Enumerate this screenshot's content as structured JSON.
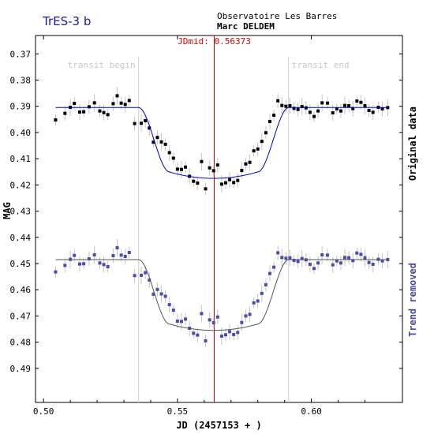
{
  "chart_data": {
    "type": "scatter",
    "title": "TrES-3 b",
    "observatory": "Observatoire Les Barres",
    "observer": "Marc DELDEM",
    "xlabel": "JD (2457153 + )",
    "ylabel": "MAG",
    "xlim": [
      0.497,
      0.634
    ],
    "ylim": [
      0.363,
      0.503
    ],
    "x_ticks": [
      "0.50",
      "0.55",
      "0.60"
    ],
    "y_ticks": [
      "0.37",
      "0.38",
      "0.39",
      "0.40",
      "0.41",
      "0.42",
      "0.43",
      "0.44",
      "0.45",
      "0.46",
      "0.47",
      "0.48",
      "0.49"
    ],
    "grid": false,
    "vertical_lines": [
      {
        "label": "transit begin",
        "x": 0.5355,
        "color": "#d0d0d0"
      },
      {
        "label": "transit end",
        "x": 0.5915,
        "color": "#d0d0d0"
      },
      {
        "label": "JDmid: 0.56373",
        "x": 0.56373,
        "color": "#dd0000"
      }
    ],
    "series": [
      {
        "name": "Original data",
        "color": "#000000",
        "model_color": "#0000cc",
        "baseline": 0.3905,
        "depth": 0.027,
        "x": [
          0.5045,
          0.508,
          0.51,
          0.5115,
          0.5135,
          0.515,
          0.517,
          0.519,
          0.521,
          0.5225,
          0.524,
          0.526,
          0.5275,
          0.529,
          0.5305,
          0.532,
          0.534,
          0.5365,
          0.538,
          0.5395,
          0.541,
          0.5425,
          0.544,
          0.5455,
          0.547,
          0.5485,
          0.55,
          0.5515,
          0.553,
          0.5545,
          0.556,
          0.5575,
          0.559,
          0.5605,
          0.562,
          0.5635,
          0.565,
          0.5665,
          0.568,
          0.5695,
          0.571,
          0.5725,
          0.574,
          0.5755,
          0.577,
          0.5785,
          0.58,
          0.5815,
          0.583,
          0.5845,
          0.586,
          0.5875,
          0.589,
          0.5905,
          0.592,
          0.5935,
          0.595,
          0.5965,
          0.598,
          0.5995,
          0.601,
          0.6025,
          0.604,
          0.606,
          0.608,
          0.6095,
          0.611,
          0.6125,
          0.614,
          0.6155,
          0.617,
          0.6185,
          0.62,
          0.6215,
          0.623,
          0.625,
          0.6265,
          0.6285
        ],
        "y": [
          0.3952,
          0.3927,
          0.3904,
          0.3889,
          0.3922,
          0.3921,
          0.3902,
          0.3887,
          0.3918,
          0.3924,
          0.3932,
          0.389,
          0.386,
          0.3888,
          0.3893,
          0.3878,
          0.3966,
          0.3965,
          0.3955,
          0.3983,
          0.4037,
          0.4019,
          0.4036,
          0.4045,
          0.4077,
          0.4098,
          0.414,
          0.4141,
          0.4132,
          0.4167,
          0.4186,
          0.4193,
          0.4111,
          0.4215,
          0.4135,
          0.4146,
          0.4124,
          0.4197,
          0.4192,
          0.418,
          0.4191,
          0.4183,
          0.4145,
          0.412,
          0.4114,
          0.407,
          0.4063,
          0.4034,
          0.4001,
          0.3958,
          0.3934,
          0.3879,
          0.3897,
          0.39,
          0.3898,
          0.3908,
          0.3912,
          0.3901,
          0.3906,
          0.3923,
          0.3939,
          0.3918,
          0.3887,
          0.3888,
          0.3925,
          0.391,
          0.3918,
          0.3897,
          0.3898,
          0.3909,
          0.388,
          0.3885,
          0.3898,
          0.3916,
          0.3923,
          0.3904,
          0.391,
          0.3905
        ]
      },
      {
        "name": "Trend removed",
        "color": "#4a4ab0",
        "model_color": "#555555",
        "baseline": 0.4485,
        "depth": 0.027,
        "offset": 0.058
      }
    ]
  }
}
